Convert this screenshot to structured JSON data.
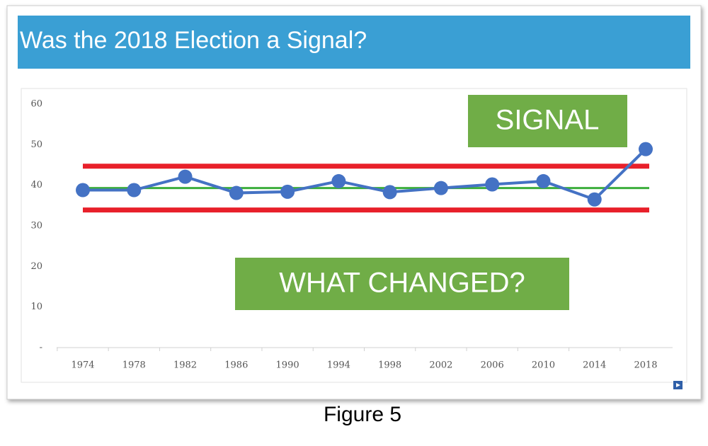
{
  "chart_data": {
    "type": "line",
    "title": "Was the 2018 Election a Signal?",
    "categories": [
      "1974",
      "1978",
      "1982",
      "1986",
      "1990",
      "1994",
      "1998",
      "2002",
      "2006",
      "2010",
      "2014",
      "2018"
    ],
    "values": [
      38.8,
      38.8,
      42.1,
      38.1,
      38.4,
      41,
      38.3,
      39.3,
      40.2,
      41,
      36.5,
      48.9
    ],
    "color": "#4472c4",
    "ylim": [
      0,
      60
    ],
    "yticks": [
      {
        "value": 0,
        "label": "-"
      },
      10,
      20,
      30,
      40,
      50,
      60
    ],
    "reference_lines": [
      {
        "value": 44.7,
        "color": "#e8202a"
      },
      {
        "value": 39.3,
        "color": "#3cae3c"
      },
      {
        "value": 33.9,
        "color": "#e8202a"
      }
    ],
    "annotations": [
      "SIGNAL",
      "WHAT CHANGED?"
    ]
  },
  "caption": "Figure 5"
}
